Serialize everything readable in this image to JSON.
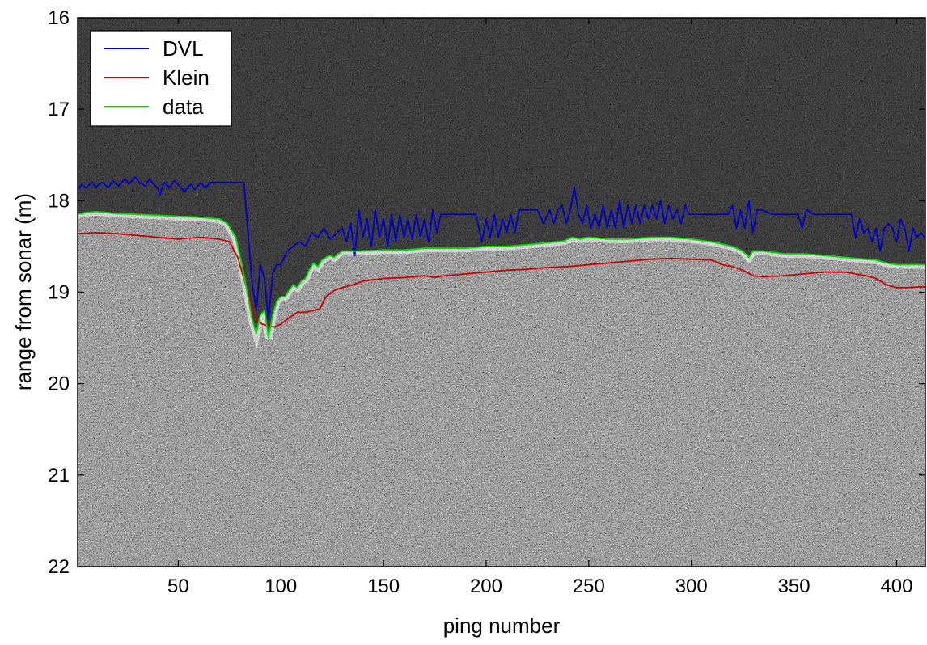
{
  "chart_data": {
    "type": "line",
    "title": "",
    "xlabel": "ping number",
    "ylabel": "range from sonar (m)",
    "xlim": [
      1,
      414
    ],
    "ylim": [
      16,
      22
    ],
    "y_reversed": true,
    "x_ticks": [
      50,
      100,
      150,
      200,
      250,
      300,
      350,
      400
    ],
    "y_ticks": [
      16,
      17,
      18,
      19,
      20,
      21,
      22
    ],
    "grid": false,
    "background": "grayscale sonar image (dark water above, bright seabed returns below)",
    "legend": {
      "placement": "top-left",
      "entries": [
        "DVL",
        "Klein",
        "data"
      ]
    },
    "series": [
      {
        "name": "DVL",
        "color": "#0000cc",
        "points": [
          [
            1,
            17.88
          ],
          [
            3,
            17.82
          ],
          [
            5,
            17.86
          ],
          [
            8,
            17.8
          ],
          [
            10,
            17.85
          ],
          [
            13,
            17.8
          ],
          [
            16,
            17.86
          ],
          [
            18,
            17.78
          ],
          [
            21,
            17.84
          ],
          [
            24,
            17.76
          ],
          [
            26,
            17.82
          ],
          [
            29,
            17.74
          ],
          [
            31,
            17.8
          ],
          [
            34,
            17.84
          ],
          [
            36,
            17.76
          ],
          [
            38,
            17.82
          ],
          [
            40,
            17.86
          ],
          [
            41,
            17.94
          ],
          [
            43,
            17.8
          ],
          [
            46,
            17.86
          ],
          [
            48,
            17.78
          ],
          [
            51,
            17.85
          ],
          [
            53,
            17.9
          ],
          [
            56,
            17.82
          ],
          [
            58,
            17.88
          ],
          [
            61,
            17.8
          ],
          [
            63,
            17.86
          ],
          [
            66,
            17.8
          ],
          [
            70,
            17.8
          ],
          [
            75,
            17.8
          ],
          [
            82,
            17.8
          ],
          [
            84,
            18.35
          ],
          [
            86,
            18.9
          ],
          [
            88,
            19.2
          ],
          [
            90,
            18.7
          ],
          [
            92,
            18.85
          ],
          [
            94,
            19.3
          ],
          [
            96,
            18.8
          ],
          [
            98,
            18.7
          ],
          [
            100,
            18.7
          ],
          [
            103,
            18.55
          ],
          [
            106,
            18.5
          ],
          [
            109,
            18.45
          ],
          [
            112,
            18.5
          ],
          [
            115,
            18.35
          ],
          [
            118,
            18.4
          ],
          [
            121,
            18.3
          ],
          [
            124,
            18.42
          ],
          [
            127,
            18.36
          ],
          [
            130,
            18.3
          ],
          [
            132,
            18.45
          ],
          [
            134,
            18.25
          ],
          [
            136,
            18.6
          ],
          [
            138,
            18.1
          ],
          [
            140,
            18.4
          ],
          [
            142,
            18.2
          ],
          [
            144,
            18.5
          ],
          [
            146,
            18.1
          ],
          [
            148,
            18.4
          ],
          [
            150,
            18.2
          ],
          [
            152,
            18.5
          ],
          [
            154,
            18.15
          ],
          [
            156,
            18.45
          ],
          [
            158,
            18.15
          ],
          [
            160,
            18.4
          ],
          [
            162,
            18.2
          ],
          [
            164,
            18.42
          ],
          [
            166,
            18.15
          ],
          [
            168,
            18.4
          ],
          [
            170,
            18.2
          ],
          [
            172,
            18.45
          ],
          [
            174,
            18.1
          ],
          [
            176,
            18.35
          ],
          [
            178,
            18.15
          ],
          [
            180,
            18.15
          ],
          [
            185,
            18.15
          ],
          [
            190,
            18.15
          ],
          [
            195,
            18.15
          ],
          [
            198,
            18.45
          ],
          [
            200,
            18.2
          ],
          [
            202,
            18.4
          ],
          [
            204,
            18.15
          ],
          [
            206,
            18.4
          ],
          [
            208,
            18.2
          ],
          [
            210,
            18.35
          ],
          [
            212,
            18.15
          ],
          [
            214,
            18.35
          ],
          [
            216,
            18.1
          ],
          [
            220,
            18.1
          ],
          [
            225,
            18.1
          ],
          [
            228,
            18.25
          ],
          [
            231,
            18.1
          ],
          [
            233,
            18.25
          ],
          [
            235,
            18.1
          ],
          [
            237,
            18.05
          ],
          [
            239,
            18.25
          ],
          [
            241,
            18.1
          ],
          [
            243,
            17.85
          ],
          [
            245,
            18.15
          ],
          [
            247,
            18.25
          ],
          [
            249,
            18.05
          ],
          [
            251,
            18.3
          ],
          [
            253,
            18.15
          ],
          [
            255,
            18.3
          ],
          [
            257,
            18.05
          ],
          [
            259,
            18.3
          ],
          [
            261,
            18.1
          ],
          [
            263,
            18.3
          ],
          [
            265,
            18.0
          ],
          [
            267,
            18.3
          ],
          [
            269,
            18.05
          ],
          [
            271,
            18.25
          ],
          [
            273,
            18.05
          ],
          [
            275,
            18.25
          ],
          [
            277,
            18.05
          ],
          [
            279,
            18.2
          ],
          [
            281,
            18.05
          ],
          [
            283,
            18.2
          ],
          [
            285,
            18.0
          ],
          [
            287,
            18.25
          ],
          [
            289,
            18.05
          ],
          [
            291,
            18.2
          ],
          [
            293,
            18.1
          ],
          [
            295,
            18.25
          ],
          [
            297,
            18.05
          ],
          [
            299,
            18.15
          ],
          [
            303,
            18.15
          ],
          [
            310,
            18.15
          ],
          [
            318,
            18.15
          ],
          [
            320,
            18.05
          ],
          [
            322,
            18.3
          ],
          [
            324,
            18.1
          ],
          [
            326,
            18.3
          ],
          [
            328,
            18.0
          ],
          [
            330,
            18.35
          ],
          [
            332,
            18.1
          ],
          [
            334,
            18.1
          ],
          [
            340,
            18.15
          ],
          [
            348,
            18.15
          ],
          [
            352,
            18.15
          ],
          [
            354,
            18.3
          ],
          [
            356,
            18.1
          ],
          [
            360,
            18.15
          ],
          [
            365,
            18.15
          ],
          [
            370,
            18.15
          ],
          [
            378,
            18.15
          ],
          [
            380,
            18.4
          ],
          [
            382,
            18.2
          ],
          [
            384,
            18.35
          ],
          [
            386,
            18.3
          ],
          [
            388,
            18.45
          ],
          [
            390,
            18.3
          ],
          [
            392,
            18.55
          ],
          [
            394,
            18.3
          ],
          [
            396,
            18.25
          ],
          [
            398,
            18.3
          ],
          [
            400,
            18.45
          ],
          [
            402,
            18.2
          ],
          [
            404,
            18.3
          ],
          [
            406,
            18.55
          ],
          [
            408,
            18.3
          ],
          [
            410,
            18.4
          ],
          [
            412,
            18.35
          ],
          [
            414,
            18.42
          ]
        ]
      },
      {
        "name": "Klein",
        "color": "#cc0000",
        "points": [
          [
            1,
            18.36
          ],
          [
            10,
            18.35
          ],
          [
            20,
            18.36
          ],
          [
            30,
            18.38
          ],
          [
            40,
            18.4
          ],
          [
            50,
            18.42
          ],
          [
            60,
            18.4
          ],
          [
            70,
            18.42
          ],
          [
            75,
            18.45
          ],
          [
            79,
            18.62
          ],
          [
            82,
            18.85
          ],
          [
            85,
            19.1
          ],
          [
            88,
            19.3
          ],
          [
            91,
            19.35
          ],
          [
            94,
            19.37
          ],
          [
            97,
            19.38
          ],
          [
            100,
            19.35
          ],
          [
            104,
            19.28
          ],
          [
            108,
            19.22
          ],
          [
            112,
            19.22
          ],
          [
            116,
            19.2
          ],
          [
            119,
            19.18
          ],
          [
            122,
            19.05
          ],
          [
            126,
            18.98
          ],
          [
            130,
            18.95
          ],
          [
            135,
            18.92
          ],
          [
            140,
            18.88
          ],
          [
            150,
            18.85
          ],
          [
            160,
            18.84
          ],
          [
            170,
            18.82
          ],
          [
            175,
            18.84
          ],
          [
            180,
            18.82
          ],
          [
            190,
            18.8
          ],
          [
            200,
            18.78
          ],
          [
            210,
            18.76
          ],
          [
            220,
            18.75
          ],
          [
            230,
            18.73
          ],
          [
            240,
            18.72
          ],
          [
            250,
            18.7
          ],
          [
            260,
            18.68
          ],
          [
            270,
            18.66
          ],
          [
            280,
            18.64
          ],
          [
            290,
            18.63
          ],
          [
            300,
            18.64
          ],
          [
            310,
            18.65
          ],
          [
            315,
            18.7
          ],
          [
            320,
            18.72
          ],
          [
            325,
            18.76
          ],
          [
            330,
            18.82
          ],
          [
            335,
            18.83
          ],
          [
            345,
            18.82
          ],
          [
            355,
            18.8
          ],
          [
            365,
            18.78
          ],
          [
            375,
            18.78
          ],
          [
            385,
            18.82
          ],
          [
            390,
            18.85
          ],
          [
            395,
            18.92
          ],
          [
            400,
            18.95
          ],
          [
            405,
            18.95
          ],
          [
            414,
            18.94
          ]
        ]
      },
      {
        "name": "data",
        "color": "#00dd00",
        "points": [
          [
            1,
            18.15
          ],
          [
            5,
            18.13
          ],
          [
            10,
            18.12
          ],
          [
            20,
            18.14
          ],
          [
            30,
            18.15
          ],
          [
            40,
            18.16
          ],
          [
            50,
            18.17
          ],
          [
            60,
            18.18
          ],
          [
            70,
            18.2
          ],
          [
            74,
            18.25
          ],
          [
            78,
            18.4
          ],
          [
            81,
            18.7
          ],
          [
            84,
            19.05
          ],
          [
            86,
            19.3
          ],
          [
            88,
            19.45
          ],
          [
            90,
            19.25
          ],
          [
            92,
            19.2
          ],
          [
            94,
            19.5
          ],
          [
            96,
            19.25
          ],
          [
            98,
            19.1
          ],
          [
            100,
            19.05
          ],
          [
            102,
            19.05
          ],
          [
            104,
            18.98
          ],
          [
            106,
            18.92
          ],
          [
            108,
            18.95
          ],
          [
            110,
            18.88
          ],
          [
            112,
            18.85
          ],
          [
            114,
            18.75
          ],
          [
            116,
            18.68
          ],
          [
            118,
            18.72
          ],
          [
            120,
            18.65
          ],
          [
            122,
            18.62
          ],
          [
            124,
            18.6
          ],
          [
            126,
            18.62
          ],
          [
            128,
            18.58
          ],
          [
            130,
            18.55
          ],
          [
            140,
            18.55
          ],
          [
            150,
            18.54
          ],
          [
            160,
            18.54
          ],
          [
            170,
            18.52
          ],
          [
            180,
            18.52
          ],
          [
            190,
            18.52
          ],
          [
            200,
            18.5
          ],
          [
            210,
            18.5
          ],
          [
            220,
            18.48
          ],
          [
            230,
            18.46
          ],
          [
            238,
            18.44
          ],
          [
            242,
            18.4
          ],
          [
            246,
            18.42
          ],
          [
            250,
            18.4
          ],
          [
            260,
            18.42
          ],
          [
            270,
            18.42
          ],
          [
            280,
            18.4
          ],
          [
            290,
            18.4
          ],
          [
            300,
            18.42
          ],
          [
            310,
            18.45
          ],
          [
            320,
            18.5
          ],
          [
            325,
            18.55
          ],
          [
            328,
            18.62
          ],
          [
            330,
            18.55
          ],
          [
            335,
            18.55
          ],
          [
            345,
            18.58
          ],
          [
            355,
            18.58
          ],
          [
            365,
            18.6
          ],
          [
            375,
            18.62
          ],
          [
            385,
            18.64
          ],
          [
            390,
            18.65
          ],
          [
            395,
            18.68
          ],
          [
            400,
            18.7
          ],
          [
            405,
            18.7
          ],
          [
            414,
            18.7
          ]
        ]
      }
    ]
  }
}
